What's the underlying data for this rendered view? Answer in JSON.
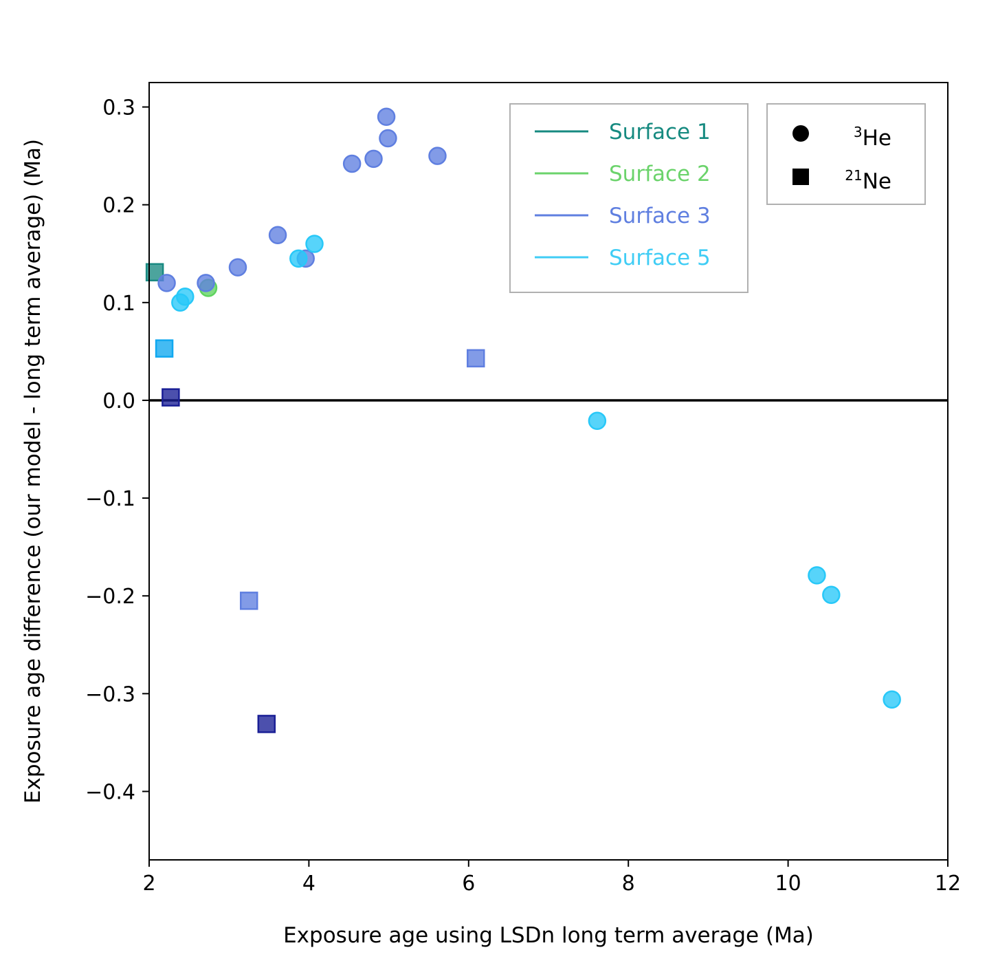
{
  "chart_data": {
    "type": "scatter",
    "xlabel": "Exposure age using LSDn long term average (Ma)",
    "ylabel": "Exposure age difference (our model - long term average) (Ma)",
    "xlim": [
      2,
      12
    ],
    "ylim": [
      -0.47,
      0.325
    ],
    "xticks": [
      2,
      4,
      6,
      8,
      10,
      12
    ],
    "xtick_labels": [
      "2",
      "4",
      "6",
      "8",
      "10",
      "12"
    ],
    "yticks": [
      0.3,
      0.2,
      0.1,
      0.0,
      -0.1,
      -0.2,
      -0.3,
      -0.4
    ],
    "ytick_labels": [
      "0.3",
      "0.2",
      "0.1",
      "0.0",
      "−0.1",
      "−0.2",
      "−0.3",
      "−0.4"
    ],
    "reference_line": {
      "y": 0.0,
      "color": "#000000"
    },
    "grid": false,
    "legend_surfaces": {
      "placement": "top-center",
      "entries": [
        {
          "label": "Surface 1",
          "color": "#168a80"
        },
        {
          "label": "Surface 2",
          "color": "#6bd36b"
        },
        {
          "label": "Surface 3",
          "color": "#5f7fe0"
        },
        {
          "label": "Surface 5",
          "color": "#40cdf5"
        }
      ]
    },
    "legend_nuclides": {
      "placement": "top-right",
      "entries": [
        {
          "marker": "circle",
          "sup": "3",
          "label": "He"
        },
        {
          "marker": "square",
          "sup": "21",
          "label": "Ne"
        }
      ]
    },
    "points": [
      {
        "x": 2.07,
        "y": 0.131,
        "marker": "square",
        "color": "#1a8a82"
      },
      {
        "x": 2.19,
        "y": 0.053,
        "marker": "square",
        "color": "#10a8f0"
      },
      {
        "x": 2.27,
        "y": 0.003,
        "marker": "square",
        "color": "#1a1f96"
      },
      {
        "x": 3.25,
        "y": -0.205,
        "marker": "square",
        "color": "#5f7fe0"
      },
      {
        "x": 3.47,
        "y": -0.331,
        "marker": "square",
        "color": "#1a1f96"
      },
      {
        "x": 6.09,
        "y": 0.043,
        "marker": "square",
        "color": "#5f7fe0"
      },
      {
        "x": 2.74,
        "y": 0.115,
        "marker": "circle",
        "color": "#5fd35f"
      },
      {
        "x": 2.22,
        "y": 0.12,
        "marker": "circle",
        "color": "#5f7fe0"
      },
      {
        "x": 2.71,
        "y": 0.12,
        "marker": "circle",
        "color": "#5f7fe0"
      },
      {
        "x": 3.11,
        "y": 0.136,
        "marker": "circle",
        "color": "#5f7fe0"
      },
      {
        "x": 3.61,
        "y": 0.169,
        "marker": "circle",
        "color": "#5f7fe0"
      },
      {
        "x": 3.96,
        "y": 0.145,
        "marker": "circle",
        "color": "#5f7fe0"
      },
      {
        "x": 4.54,
        "y": 0.242,
        "marker": "circle",
        "color": "#5f7fe0"
      },
      {
        "x": 4.81,
        "y": 0.247,
        "marker": "circle",
        "color": "#5f7fe0"
      },
      {
        "x": 4.97,
        "y": 0.29,
        "marker": "circle",
        "color": "#5f7fe0"
      },
      {
        "x": 4.99,
        "y": 0.268,
        "marker": "circle",
        "color": "#5f7fe0"
      },
      {
        "x": 5.61,
        "y": 0.25,
        "marker": "circle",
        "color": "#5f7fe0"
      },
      {
        "x": 2.39,
        "y": 0.1,
        "marker": "circle",
        "color": "#28c8f8"
      },
      {
        "x": 2.45,
        "y": 0.106,
        "marker": "circle",
        "color": "#28c8f8"
      },
      {
        "x": 3.87,
        "y": 0.145,
        "marker": "circle",
        "color": "#28c8f8"
      },
      {
        "x": 4.07,
        "y": 0.16,
        "marker": "circle",
        "color": "#28c8f8"
      },
      {
        "x": 7.61,
        "y": -0.021,
        "marker": "circle",
        "color": "#28c8f8"
      },
      {
        "x": 10.36,
        "y": -0.179,
        "marker": "circle",
        "color": "#28c8f8"
      },
      {
        "x": 10.54,
        "y": -0.199,
        "marker": "circle",
        "color": "#28c8f8"
      },
      {
        "x": 11.3,
        "y": -0.306,
        "marker": "circle",
        "color": "#28c8f8"
      }
    ]
  }
}
